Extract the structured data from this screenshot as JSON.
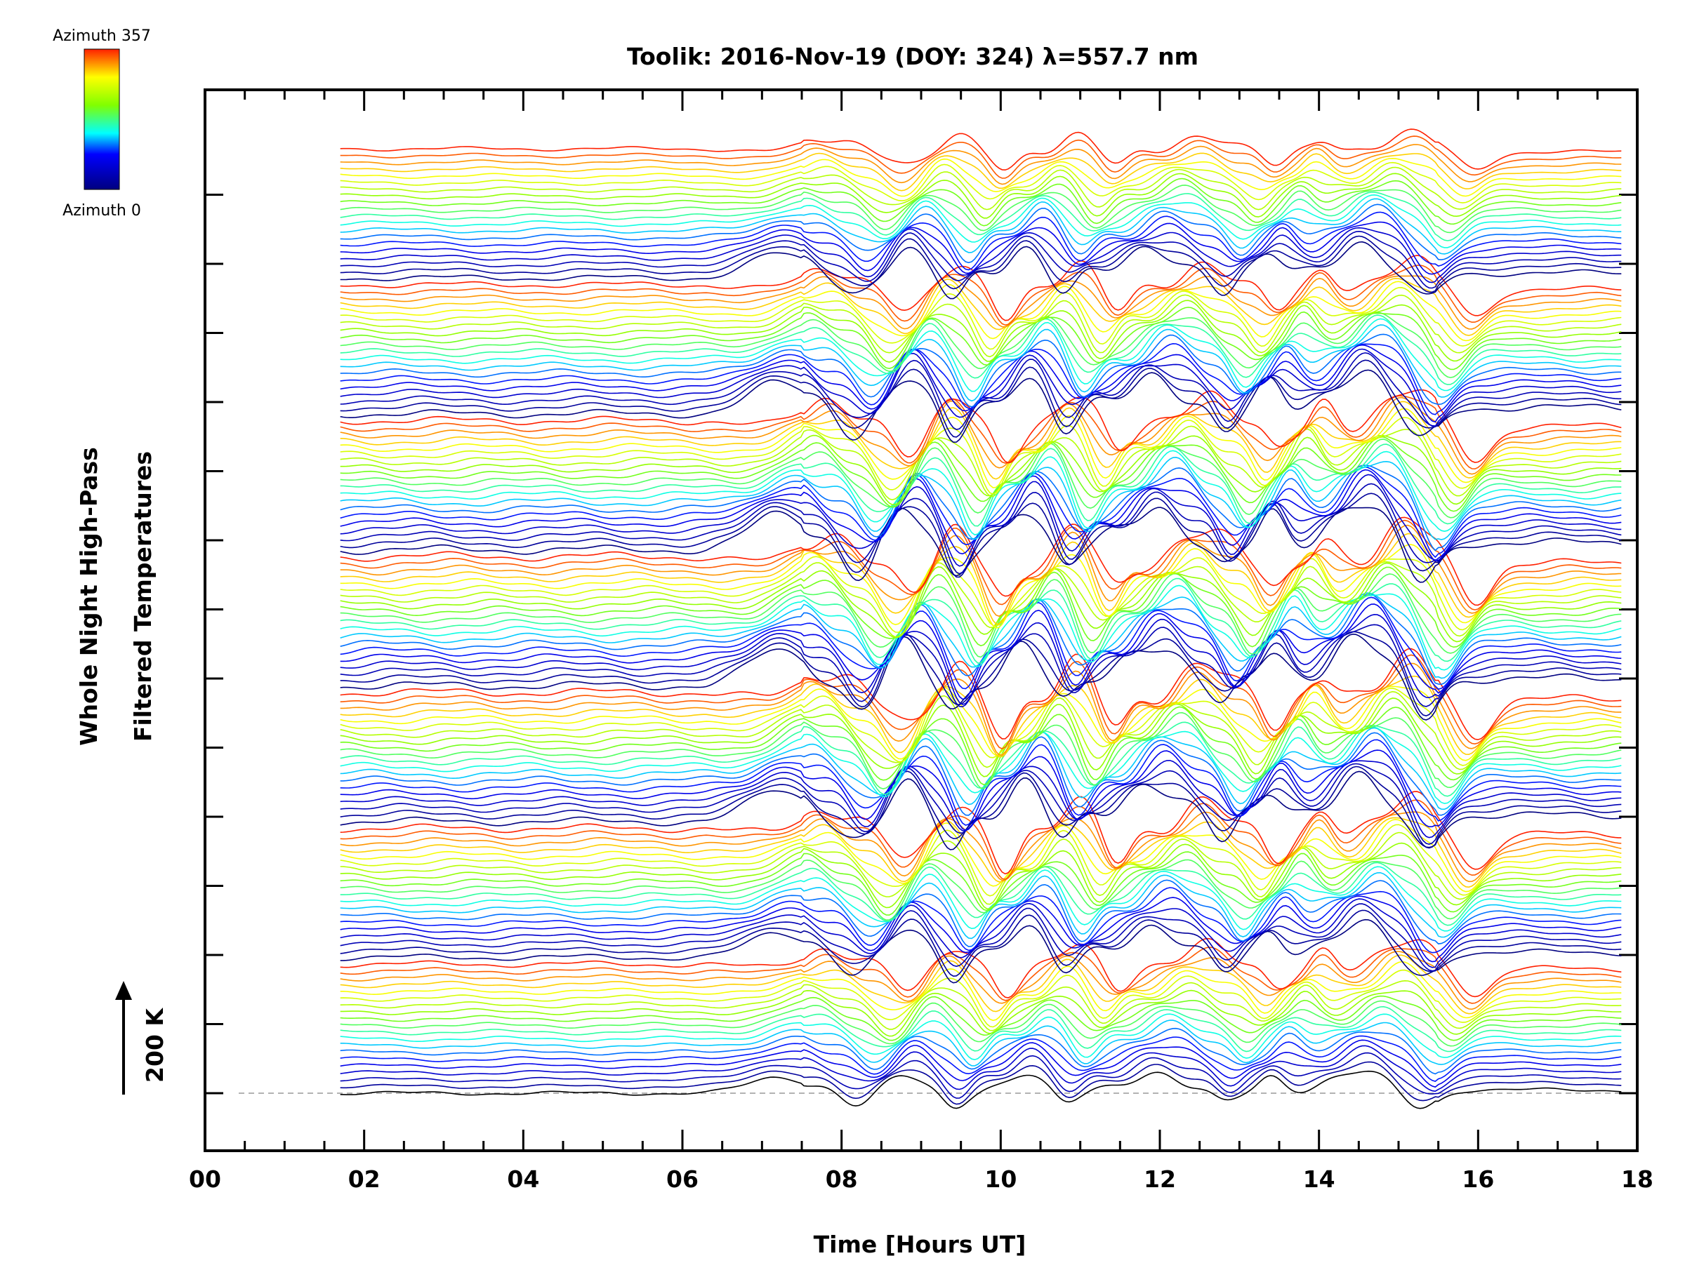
{
  "chart_data": {
    "type": "line",
    "title": "Toolik: 2016-Nov-19 (DOY: 324) λ=557.7 nm",
    "xlabel": "Time [Hours UT]",
    "ylabel_line1": "Whole Night High-Pass",
    "ylabel_line2": "Filtered Temperatures",
    "scale_label": "200 K",
    "xlim": [
      0,
      18
    ],
    "xticks": [
      "00",
      "02",
      "04",
      "06",
      "08",
      "10",
      "12",
      "14",
      "16",
      "18"
    ],
    "legend": {
      "top_label": "Azimuth 357",
      "bottom_label": "Azimuth 0",
      "colormap": "rainbow"
    },
    "series_count": 140,
    "time_range_hours": [
      1.7,
      17.8
    ],
    "features": [
      {
        "t": 7.2,
        "a": 1.0,
        "w": 0.35
      },
      {
        "t": 8.2,
        "a": -1.1,
        "w": 0.2
      },
      {
        "t": 8.8,
        "a": 1.2,
        "w": 0.2
      },
      {
        "t": 9.4,
        "a": -1.3,
        "w": 0.15
      },
      {
        "t": 10.3,
        "a": 1.3,
        "w": 0.2
      },
      {
        "t": 10.8,
        "a": -1.0,
        "w": 0.15
      },
      {
        "t": 11.9,
        "a": 1.3,
        "w": 0.3
      },
      {
        "t": 12.8,
        "a": -1.0,
        "w": 0.15
      },
      {
        "t": 13.4,
        "a": 1.0,
        "w": 0.15
      },
      {
        "t": 14.5,
        "a": 1.5,
        "w": 0.3
      },
      {
        "t": 15.3,
        "a": -1.4,
        "w": 0.2
      }
    ]
  }
}
